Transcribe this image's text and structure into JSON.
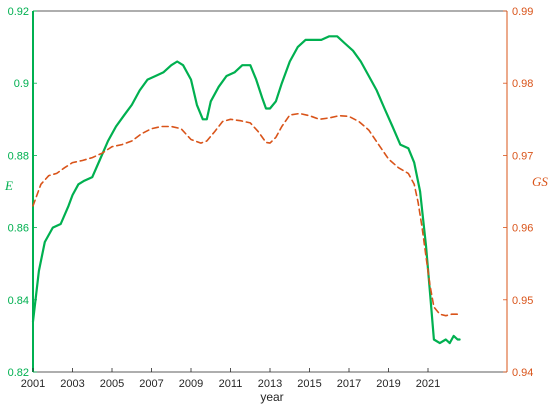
{
  "chart_data": {
    "type": "line",
    "xlabel": "year",
    "x_ticks": [
      "2001",
      "2003",
      "2005",
      "2007",
      "2009",
      "2011",
      "2013",
      "2015",
      "2017",
      "2019",
      "2021"
    ],
    "xlim": [
      2001,
      2025
    ],
    "left_axis": {
      "label": "E",
      "ylim": [
        0.82,
        0.92
      ],
      "ticks": [
        "0.82",
        "0.84",
        "0.86",
        "0.88",
        "0.9",
        "0.92"
      ],
      "color": "#00b050"
    },
    "right_axis": {
      "label": "GS",
      "ylim": [
        0.94,
        0.99
      ],
      "ticks": [
        "0.94",
        "0.95",
        "0.96",
        "0.97",
        "0.98",
        "0.99"
      ],
      "color": "#d9541a"
    },
    "grid": false,
    "series": [
      {
        "name": "E",
        "axis": "left",
        "style": "solid",
        "color": "#00b050",
        "x": [
          2001,
          2001.3,
          2001.6,
          2002,
          2002.4,
          2002.8,
          2003,
          2003.3,
          2003.6,
          2004,
          2004.4,
          2004.8,
          2005.2,
          2005.6,
          2006,
          2006.4,
          2006.8,
          2007.2,
          2007.6,
          2008,
          2008.3,
          2008.6,
          2009,
          2009.3,
          2009.6,
          2009.8,
          2010,
          2010.4,
          2010.8,
          2011.2,
          2011.6,
          2012,
          2012.3,
          2012.6,
          2012.8,
          2013,
          2013.3,
          2013.6,
          2014,
          2014.4,
          2014.8,
          2015.2,
          2015.6,
          2016,
          2016.4,
          2016.8,
          2017.2,
          2017.6,
          2018,
          2018.4,
          2018.8,
          2019.2,
          2019.6,
          2020,
          2020.3,
          2020.6,
          2020.9,
          2021.1,
          2021.3,
          2021.6,
          2021.9,
          2022.1,
          2022.3,
          2022.5,
          2022.6
        ],
        "values": [
          0.834,
          0.848,
          0.856,
          0.86,
          0.861,
          0.866,
          0.869,
          0.872,
          0.873,
          0.874,
          0.879,
          0.884,
          0.888,
          0.891,
          0.894,
          0.898,
          0.901,
          0.902,
          0.903,
          0.905,
          0.906,
          0.905,
          0.901,
          0.894,
          0.89,
          0.89,
          0.895,
          0.899,
          0.902,
          0.903,
          0.905,
          0.905,
          0.901,
          0.896,
          0.893,
          0.893,
          0.895,
          0.9,
          0.906,
          0.91,
          0.912,
          0.912,
          0.912,
          0.913,
          0.913,
          0.911,
          0.909,
          0.906,
          0.902,
          0.898,
          0.893,
          0.888,
          0.883,
          0.882,
          0.878,
          0.87,
          0.855,
          0.842,
          0.829,
          0.828,
          0.829,
          0.828,
          0.83,
          0.829,
          0.829
        ]
      },
      {
        "name": "GS",
        "axis": "right",
        "style": "dashed",
        "color": "#d9541a",
        "x": [
          2001,
          2001.4,
          2001.8,
          2002.2,
          2002.6,
          2003,
          2003.5,
          2004,
          2004.5,
          2005,
          2005.5,
          2006,
          2006.5,
          2007,
          2007.5,
          2008,
          2008.5,
          2009,
          2009.5,
          2009.8,
          2010.2,
          2010.6,
          2011,
          2011.5,
          2012,
          2012.4,
          2012.8,
          2013,
          2013.3,
          2013.6,
          2014,
          2014.5,
          2015,
          2015.5,
          2016,
          2016.5,
          2017,
          2017.5,
          2018,
          2018.5,
          2019,
          2019.5,
          2020,
          2020.3,
          2020.5,
          2020.7,
          2020.9,
          2021.1,
          2021.3,
          2021.6,
          2021.9,
          2022.2,
          2022.5,
          2022.6
        ],
        "values": [
          0.963,
          0.966,
          0.9672,
          0.9675,
          0.9683,
          0.969,
          0.9693,
          0.9697,
          0.9703,
          0.9712,
          0.9715,
          0.972,
          0.973,
          0.9737,
          0.974,
          0.974,
          0.9737,
          0.9722,
          0.9717,
          0.972,
          0.9733,
          0.9747,
          0.975,
          0.9748,
          0.9745,
          0.9733,
          0.9718,
          0.9717,
          0.9725,
          0.974,
          0.9756,
          0.9758,
          0.9755,
          0.975,
          0.9752,
          0.9755,
          0.9754,
          0.9747,
          0.9735,
          0.9715,
          0.9695,
          0.9683,
          0.9675,
          0.966,
          0.9635,
          0.96,
          0.956,
          0.952,
          0.949,
          0.948,
          0.9478,
          0.948,
          0.948,
          0.9477
        ]
      }
    ]
  }
}
